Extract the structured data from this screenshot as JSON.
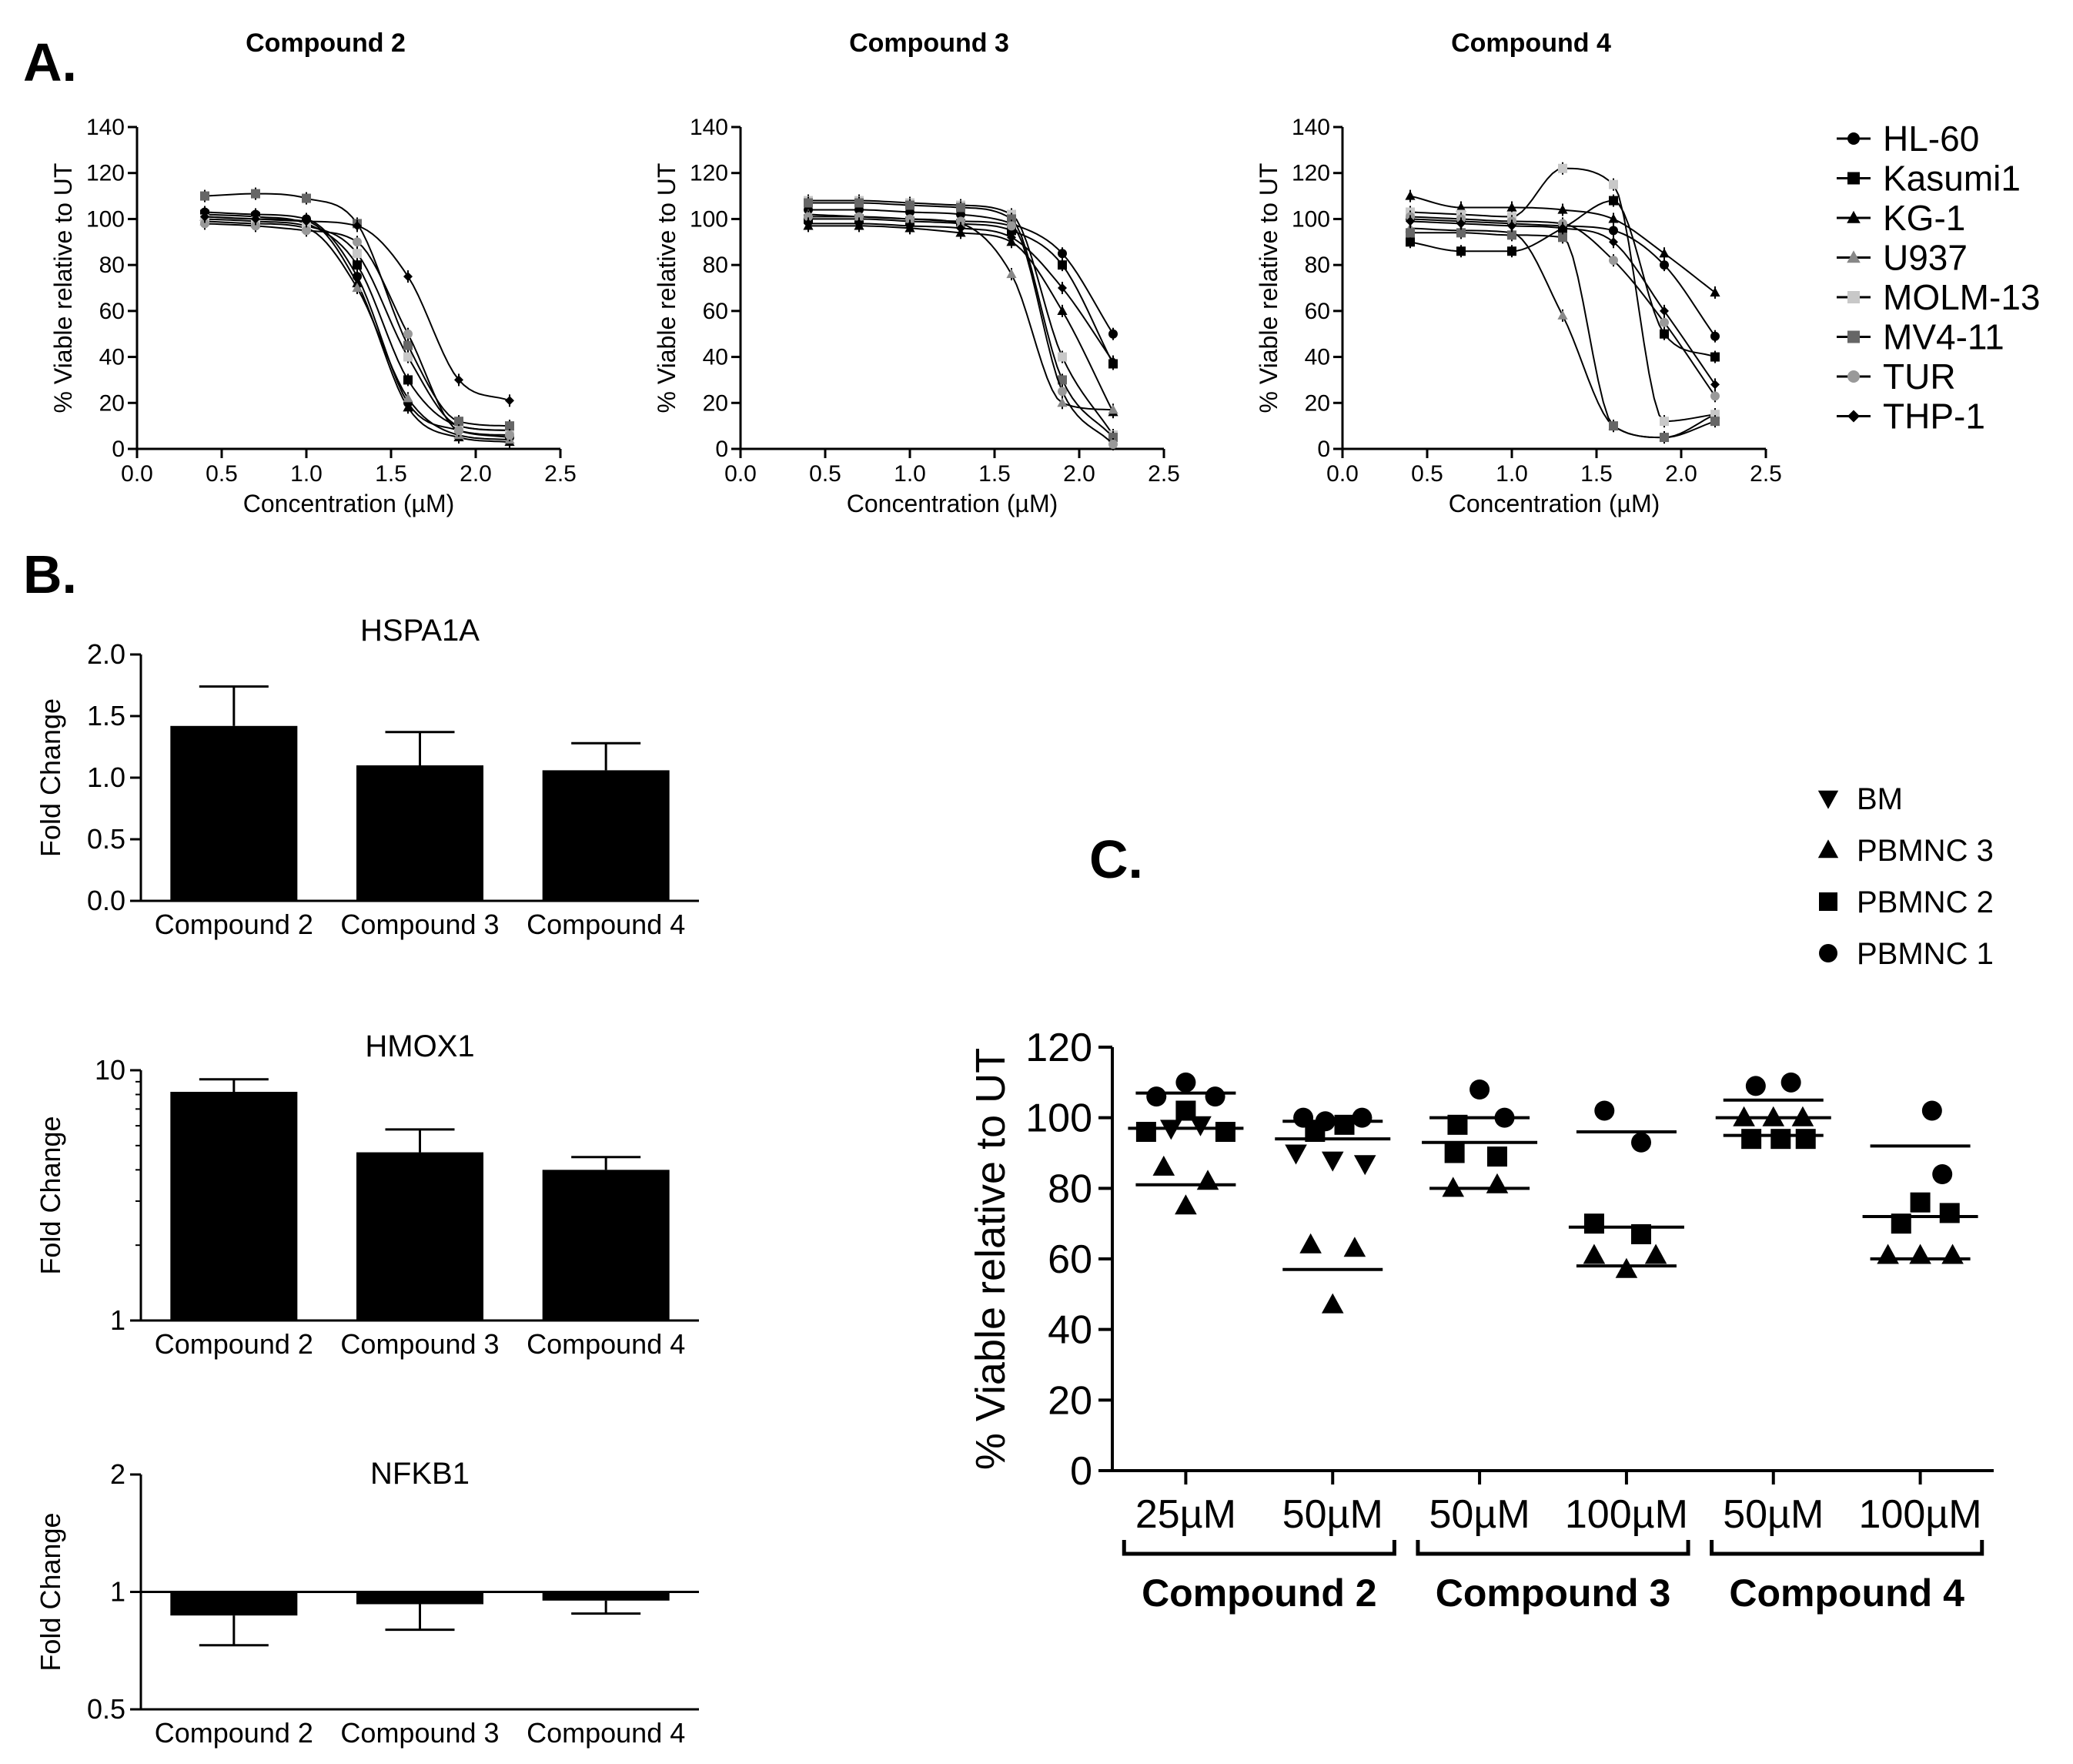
{
  "panel_labels": {
    "a": "A.",
    "b": "B.",
    "c": "C."
  },
  "chart_data": [
    {
      "id": "A1",
      "type": "line",
      "title": "Compound 2",
      "xlabel": "Concentration (µM)",
      "ylabel": "% Viable relative to UT",
      "xlim": [
        0,
        2.5
      ],
      "ylim": [
        0,
        140
      ],
      "xticks": [
        "0.0",
        "0.5",
        "1.0",
        "1.5",
        "2.0",
        "2.5"
      ],
      "yticks": [
        "0",
        "20",
        "40",
        "60",
        "80",
        "100",
        "120",
        "140"
      ],
      "x": [
        0.4,
        0.7,
        1.0,
        1.3,
        1.6,
        1.9,
        2.2
      ],
      "series": [
        {
          "name": "HL-60",
          "values": [
            103,
            102,
            100,
            75,
            20,
            8,
            5
          ]
        },
        {
          "name": "Kasumi1",
          "values": [
            102,
            101,
            98,
            80,
            30,
            10,
            8
          ]
        },
        {
          "name": "KG-1",
          "values": [
            101,
            100,
            99,
            72,
            18,
            5,
            3
          ]
        },
        {
          "name": "U937",
          "values": [
            99,
            98,
            96,
            70,
            22,
            6,
            4
          ]
        },
        {
          "name": "MOLM-13",
          "values": [
            100,
            99,
            97,
            85,
            40,
            10,
            8
          ]
        },
        {
          "name": "MV4-11",
          "values": [
            110,
            111,
            109,
            98,
            45,
            12,
            10
          ]
        },
        {
          "name": "TUR",
          "values": [
            98,
            97,
            95,
            90,
            50,
            8,
            6
          ]
        },
        {
          "name": "THP-1",
          "values": [
            101,
            100,
            99,
            97,
            75,
            30,
            21
          ]
        }
      ]
    },
    {
      "id": "A2",
      "type": "line",
      "title": "Compound 3",
      "xlabel": "Concentration (µM)",
      "ylabel": "% Viable relative to UT",
      "xlim": [
        0,
        2.5
      ],
      "ylim": [
        0,
        140
      ],
      "xticks": [
        "0.0",
        "0.5",
        "1.0",
        "1.5",
        "2.0",
        "2.5"
      ],
      "yticks": [
        "0",
        "20",
        "40",
        "60",
        "80",
        "100",
        "120",
        "140"
      ],
      "x": [
        0.4,
        0.7,
        1.0,
        1.3,
        1.6,
        1.9,
        2.2
      ],
      "series": [
        {
          "name": "HL-60",
          "values": [
            104,
            104,
            103,
            102,
            98,
            85,
            50
          ]
        },
        {
          "name": "Kasumi1",
          "values": [
            100,
            100,
            99,
            98,
            95,
            80,
            37
          ]
        },
        {
          "name": "KG-1",
          "values": [
            97,
            97,
            96,
            94,
            90,
            60,
            16
          ]
        },
        {
          "name": "U937",
          "values": [
            102,
            101,
            100,
            98,
            76,
            20,
            17
          ]
        },
        {
          "name": "MOLM-13",
          "values": [
            108,
            108,
            107,
            106,
            102,
            40,
            6
          ]
        },
        {
          "name": "MV4-11",
          "values": [
            107,
            107,
            106,
            105,
            100,
            30,
            5
          ]
        },
        {
          "name": "TUR",
          "values": [
            101,
            101,
            100,
            99,
            97,
            25,
            2
          ]
        },
        {
          "name": "THP-1",
          "values": [
            98,
            98,
            97,
            96,
            92,
            70,
            38
          ]
        }
      ]
    },
    {
      "id": "A3",
      "type": "line",
      "title": "Compound 4",
      "xlabel": "Concentration (µM)",
      "ylabel": "% Viable relative to UT",
      "xlim": [
        0,
        2.5
      ],
      "ylim": [
        0,
        140
      ],
      "xticks": [
        "0.0",
        "0.5",
        "1.0",
        "1.5",
        "2.0",
        "2.5"
      ],
      "yticks": [
        "0",
        "20",
        "40",
        "60",
        "80",
        "100",
        "120",
        "140"
      ],
      "x": [
        0.4,
        0.7,
        1.0,
        1.3,
        1.6,
        1.9,
        2.2
      ],
      "series": [
        {
          "name": "HL-60",
          "values": [
            100,
            99,
            98,
            97,
            95,
            80,
            49
          ]
        },
        {
          "name": "Kasumi1",
          "values": [
            90,
            86,
            86,
            96,
            108,
            50,
            40
          ]
        },
        {
          "name": "KG-1",
          "values": [
            110,
            105,
            105,
            104,
            100,
            85,
            68
          ]
        },
        {
          "name": "U937",
          "values": [
            96,
            95,
            94,
            58,
            10,
            5,
            15
          ]
        },
        {
          "name": "MOLM-13",
          "values": [
            103,
            102,
            101,
            122,
            115,
            12,
            15
          ]
        },
        {
          "name": "MV4-11",
          "values": [
            94,
            94,
            93,
            92,
            10,
            5,
            12
          ]
        },
        {
          "name": "TUR",
          "values": [
            101,
            100,
            99,
            98,
            82,
            55,
            23
          ]
        },
        {
          "name": "THP-1",
          "values": [
            99,
            98,
            97,
            96,
            90,
            60,
            28
          ]
        }
      ]
    },
    {
      "id": "B1",
      "type": "bar",
      "title": "HSPA1A",
      "ylabel": "Fold Change",
      "categories": [
        "Compound 2",
        "Compound 3",
        "Compound 4"
      ],
      "values": [
        1.42,
        1.1,
        1.06
      ],
      "errors": [
        0.32,
        0.27,
        0.22
      ],
      "ylim": [
        0,
        2.0
      ],
      "yticks": [
        "0.0",
        "0.5",
        "1.0",
        "1.5",
        "2.0"
      ]
    },
    {
      "id": "B2",
      "type": "bar",
      "title": "HMOX1",
      "ylabel": "Fold Change",
      "scale": "log",
      "categories": [
        "Compound 2",
        "Compound 3",
        "Compound 4"
      ],
      "values": [
        8.2,
        4.7,
        4.0
      ],
      "errors": [
        1.0,
        1.1,
        0.5
      ],
      "ylim": [
        1,
        10
      ],
      "yticks": [
        "1",
        "10"
      ]
    },
    {
      "id": "B3",
      "type": "bar",
      "title": "NFKB1",
      "ylabel": "Fold Change",
      "scale": "log",
      "baseline": 1,
      "categories": [
        "Compound 2",
        "Compound 3",
        "Compound 4"
      ],
      "values": [
        0.87,
        0.93,
        0.95
      ],
      "errors": [
        0.14,
        0.13,
        0.07
      ],
      "ylim": [
        0.5,
        2
      ],
      "yticks": [
        "0.5",
        "1",
        "2"
      ]
    },
    {
      "id": "C",
      "type": "scatter",
      "ylabel": "% Viable relative to UT",
      "ylim": [
        0,
        120
      ],
      "yticks": [
        "0",
        "20",
        "40",
        "60",
        "80",
        "100",
        "120"
      ],
      "categories": [
        "25µM",
        "50µM",
        "50µM",
        "100µM",
        "50µM",
        "100µM"
      ],
      "groups": [
        {
          "label": "Compound 2",
          "span": [
            0,
            1
          ]
        },
        {
          "label": "Compound 3",
          "span": [
            2,
            3
          ]
        },
        {
          "label": "Compound 4",
          "span": [
            4,
            5
          ]
        }
      ],
      "legend": [
        {
          "name": "BM",
          "marker": "triangle-down"
        },
        {
          "name": "PBMNC 3",
          "marker": "triangle-up"
        },
        {
          "name": "PBMNC 2",
          "marker": "square"
        },
        {
          "name": "PBMNC 1",
          "marker": "circle"
        }
      ],
      "points": [
        [
          {
            "s": "PBMNC 1",
            "y": 110,
            "dx": 0.0
          },
          {
            "s": "PBMNC 1",
            "y": 106,
            "dx": -0.2
          },
          {
            "s": "PBMNC 1",
            "y": 106,
            "dx": 0.2
          },
          {
            "s": "PBMNC 2",
            "y": 102,
            "dx": 0.0
          },
          {
            "s": "PBMNC 2",
            "y": 96,
            "dx": -0.27
          },
          {
            "s": "PBMNC 2",
            "y": 96,
            "dx": 0.27
          },
          {
            "s": "BM",
            "y": 98,
            "dx": 0.1
          },
          {
            "s": "BM",
            "y": 97,
            "dx": -0.1
          },
          {
            "s": "PBMNC 3",
            "y": 86,
            "dx": -0.15
          },
          {
            "s": "PBMNC 3",
            "y": 82,
            "dx": 0.15
          },
          {
            "s": "PBMNC 3",
            "y": 75,
            "dx": 0.0
          }
        ],
        [
          {
            "s": "PBMNC 1",
            "y": 100,
            "dx": -0.2
          },
          {
            "s": "PBMNC 1",
            "y": 100,
            "dx": 0.2
          },
          {
            "s": "PBMNC 1",
            "y": 99,
            "dx": -0.05
          },
          {
            "s": "PBMNC 2",
            "y": 98,
            "dx": 0.08
          },
          {
            "s": "PBMNC 2",
            "y": 96,
            "dx": -0.12
          },
          {
            "s": "BM",
            "y": 90,
            "dx": -0.25
          },
          {
            "s": "BM",
            "y": 88,
            "dx": 0.0
          },
          {
            "s": "BM",
            "y": 87,
            "dx": 0.22
          },
          {
            "s": "PBMNC 3",
            "y": 64,
            "dx": -0.15
          },
          {
            "s": "PBMNC 3",
            "y": 63,
            "dx": 0.15
          },
          {
            "s": "PBMNC 3",
            "y": 47,
            "dx": 0.0
          }
        ],
        [
          {
            "s": "PBMNC 1",
            "y": 108,
            "dx": 0.0
          },
          {
            "s": "PBMNC 1",
            "y": 100,
            "dx": 0.17
          },
          {
            "s": "PBMNC 2",
            "y": 98,
            "dx": -0.15
          },
          {
            "s": "PBMNC 2",
            "y": 90,
            "dx": -0.17
          },
          {
            "s": "PBMNC 2",
            "y": 89,
            "dx": 0.12
          },
          {
            "s": "PBMNC 3",
            "y": 80,
            "dx": -0.18
          },
          {
            "s": "PBMNC 3",
            "y": 81,
            "dx": 0.12
          }
        ],
        [
          {
            "s": "PBMNC 1",
            "y": 102,
            "dx": -0.15
          },
          {
            "s": "PBMNC 1",
            "y": 93,
            "dx": 0.1
          },
          {
            "s": "PBMNC 2",
            "y": 70,
            "dx": -0.22
          },
          {
            "s": "PBMNC 2",
            "y": 67,
            "dx": 0.1
          },
          {
            "s": "PBMNC 3",
            "y": 61,
            "dx": -0.22
          },
          {
            "s": "PBMNC 3",
            "y": 57,
            "dx": 0.0
          },
          {
            "s": "PBMNC 3",
            "y": 61,
            "dx": 0.2
          }
        ],
        [
          {
            "s": "PBMNC 1",
            "y": 109,
            "dx": -0.12
          },
          {
            "s": "PBMNC 1",
            "y": 110,
            "dx": 0.12
          },
          {
            "s": "PBMNC 3",
            "y": 100,
            "dx": -0.2
          },
          {
            "s": "PBMNC 3",
            "y": 100,
            "dx": 0.2
          },
          {
            "s": "PBMNC 3",
            "y": 100,
            "dx": 0.0
          },
          {
            "s": "PBMNC 2",
            "y": 94,
            "dx": -0.15
          },
          {
            "s": "PBMNC 2",
            "y": 94,
            "dx": 0.05
          },
          {
            "s": "PBMNC 2",
            "y": 94,
            "dx": 0.22
          }
        ],
        [
          {
            "s": "PBMNC 1",
            "y": 102,
            "dx": 0.08
          },
          {
            "s": "PBMNC 1",
            "y": 84,
            "dx": 0.15
          },
          {
            "s": "PBMNC 2",
            "y": 76,
            "dx": 0.0
          },
          {
            "s": "PBMNC 2",
            "y": 73,
            "dx": 0.2
          },
          {
            "s": "PBMNC 2",
            "y": 70,
            "dx": -0.13
          },
          {
            "s": "PBMNC 3",
            "y": 61,
            "dx": -0.22
          },
          {
            "s": "PBMNC 3",
            "y": 61,
            "dx": 0.0
          },
          {
            "s": "PBMNC 3",
            "y": 61,
            "dx": 0.22
          }
        ]
      ],
      "lines": [
        {
          "mean": 97,
          "top": 107,
          "bottom": 81
        },
        {
          "mean": 94,
          "top": 99,
          "bottom": 57
        },
        {
          "mean": 93,
          "top": 100,
          "bottom": 80
        },
        {
          "mean": 69,
          "top": 96,
          "bottom": 58
        },
        {
          "mean": 100,
          "top": 105,
          "bottom": 95
        },
        {
          "mean": 72,
          "top": 92,
          "bottom": 60
        }
      ]
    }
  ]
}
